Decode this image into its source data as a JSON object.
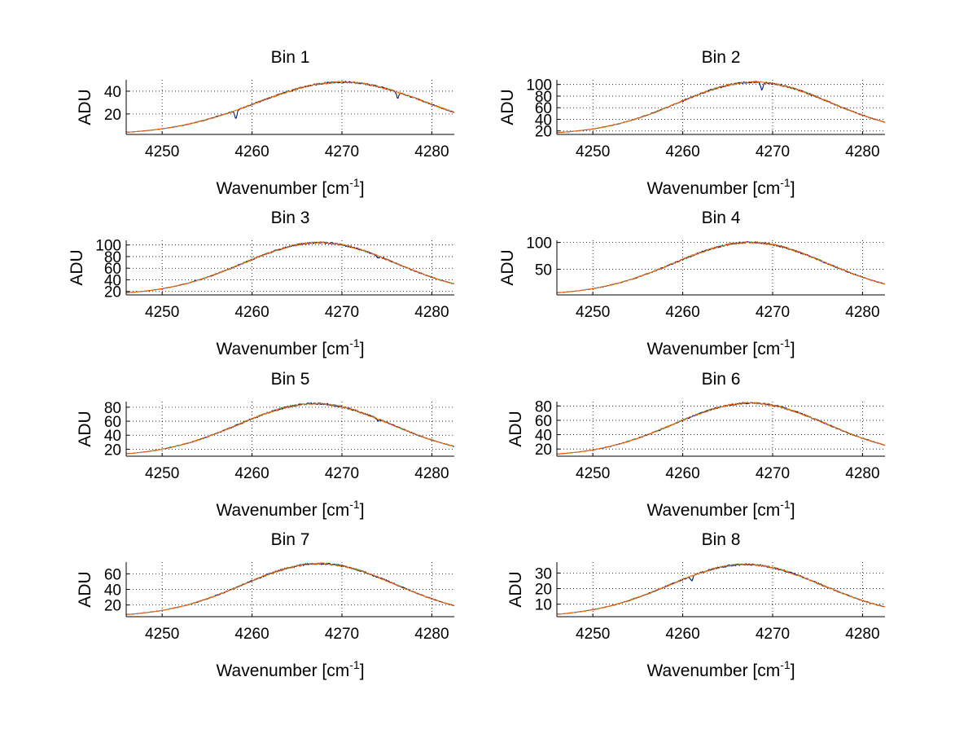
{
  "chart_data": [
    {
      "type": "line",
      "title": "Bin 1",
      "xlabel": "Wavenumber [cm",
      "xlabel_sup": "-1",
      "xlabel_end": "]",
      "ylabel": "ADU",
      "xlim": [
        4246,
        4282.5
      ],
      "ylim": [
        2,
        50
      ],
      "xticks": [
        4250,
        4260,
        4270,
        4280
      ],
      "yticks": [
        20,
        40
      ],
      "grid": true,
      "curve": {
        "center": 4270,
        "peak": 48,
        "floor": 2,
        "width": 13.4
      },
      "dips": [
        {
          "x": 4258.2,
          "depth": 7
        },
        {
          "x": 4276.2,
          "depth": 5
        }
      ],
      "series": [
        {
          "color": "#00b050"
        },
        {
          "color": "#000080"
        },
        {
          "color": "#ff6600"
        }
      ]
    },
    {
      "type": "line",
      "title": "Bin 2",
      "xlabel": "Wavenumber [cm",
      "xlabel_sup": "-1",
      "xlabel_end": "]",
      "ylabel": "ADU",
      "xlim": [
        4246,
        4282.5
      ],
      "ylim": [
        14,
        108
      ],
      "xticks": [
        4250,
        4260,
        4270,
        4280
      ],
      "yticks": [
        20,
        40,
        60,
        80,
        100
      ],
      "grid": true,
      "curve": {
        "center": 4268,
        "peak": 104,
        "floor": 14,
        "width": 12
      },
      "dips": [
        {
          "x": 4268.8,
          "depth": 12
        }
      ],
      "series": [
        {
          "color": "#00b050"
        },
        {
          "color": "#000080"
        },
        {
          "color": "#ff6600"
        }
      ]
    },
    {
      "type": "line",
      "title": "Bin 3",
      "xlabel": "Wavenumber [cm",
      "xlabel_sup": "-1",
      "xlabel_end": "]",
      "ylabel": "ADU",
      "xlim": [
        4246,
        4282.5
      ],
      "ylim": [
        14,
        108
      ],
      "xticks": [
        4250,
        4260,
        4270,
        4280
      ],
      "yticks": [
        20,
        40,
        60,
        80,
        100
      ],
      "grid": true,
      "curve": {
        "center": 4267.5,
        "peak": 104,
        "floor": 14,
        "width": 12
      },
      "dips": [
        {
          "x": 4274,
          "depth": 3
        }
      ],
      "series": [
        {
          "color": "#00b050"
        },
        {
          "color": "#000080"
        },
        {
          "color": "#ff6600"
        }
      ]
    },
    {
      "type": "line",
      "title": "Bin 4",
      "xlabel": "Wavenumber [cm",
      "xlabel_sup": "-1",
      "xlabel_end": "]",
      "ylabel": "ADU",
      "xlim": [
        4246,
        4282.5
      ],
      "ylim": [
        2,
        104
      ],
      "xticks": [
        4250,
        4260,
        4270,
        4280
      ],
      "yticks": [
        50,
        100
      ],
      "grid": true,
      "curve": {
        "center": 4267.5,
        "peak": 100,
        "floor": 2,
        "width": 12
      },
      "dips": [],
      "series": [
        {
          "color": "#00b050"
        },
        {
          "color": "#000080"
        },
        {
          "color": "#ff6600"
        }
      ]
    },
    {
      "type": "line",
      "title": "Bin 5",
      "xlabel": "Wavenumber [cm",
      "xlabel_sup": "-1",
      "xlabel_end": "]",
      "ylabel": "ADU",
      "xlim": [
        4246,
        4282.5
      ],
      "ylim": [
        10,
        88
      ],
      "xticks": [
        4250,
        4260,
        4270,
        4280
      ],
      "yticks": [
        20,
        40,
        60,
        80
      ],
      "grid": true,
      "curve": {
        "center": 4267,
        "peak": 85,
        "floor": 10,
        "width": 12
      },
      "dips": [
        {
          "x": 4274,
          "depth": 3
        }
      ],
      "series": [
        {
          "color": "#00b050"
        },
        {
          "color": "#000080"
        },
        {
          "color": "#ff6600"
        }
      ]
    },
    {
      "type": "line",
      "title": "Bin 6",
      "xlabel": "Wavenumber [cm",
      "xlabel_sup": "-1",
      "xlabel_end": "]",
      "ylabel": "ADU",
      "xlim": [
        4246,
        4282.5
      ],
      "ylim": [
        10,
        86
      ],
      "xticks": [
        4250,
        4260,
        4270,
        4280
      ],
      "yticks": [
        20,
        40,
        60,
        80
      ],
      "grid": true,
      "curve": {
        "center": 4267.5,
        "peak": 84,
        "floor": 10,
        "width": 12
      },
      "dips": [],
      "series": [
        {
          "color": "#00b050"
        },
        {
          "color": "#000080"
        },
        {
          "color": "#ff6600"
        }
      ]
    },
    {
      "type": "line",
      "title": "Bin 7",
      "xlabel": "Wavenumber [cm",
      "xlabel_sup": "-1",
      "xlabel_end": "]",
      "ylabel": "ADU",
      "xlim": [
        4246,
        4282.5
      ],
      "ylim": [
        5,
        75
      ],
      "xticks": [
        4250,
        4260,
        4270,
        4280
      ],
      "yticks": [
        20,
        40,
        60
      ],
      "grid": true,
      "curve": {
        "center": 4267.5,
        "peak": 73,
        "floor": 5,
        "width": 12
      },
      "dips": [],
      "series": [
        {
          "color": "#00b050"
        },
        {
          "color": "#000080"
        },
        {
          "color": "#ff6600"
        }
      ]
    },
    {
      "type": "line",
      "title": "Bin 8",
      "xlabel": "Wavenumber [cm",
      "xlabel_sup": "-1",
      "xlabel_end": "]",
      "ylabel": "ADU",
      "xlim": [
        4246,
        4282.5
      ],
      "ylim": [
        2,
        37
      ],
      "xticks": [
        4250,
        4260,
        4270,
        4280
      ],
      "yticks": [
        10,
        20,
        30
      ],
      "grid": true,
      "curve": {
        "center": 4267,
        "peak": 35.5,
        "floor": 2,
        "width": 12
      },
      "dips": [
        {
          "x": 4261,
          "depth": 3
        }
      ],
      "series": [
        {
          "color": "#00b050"
        },
        {
          "color": "#000080"
        },
        {
          "color": "#ff6600"
        }
      ]
    }
  ]
}
